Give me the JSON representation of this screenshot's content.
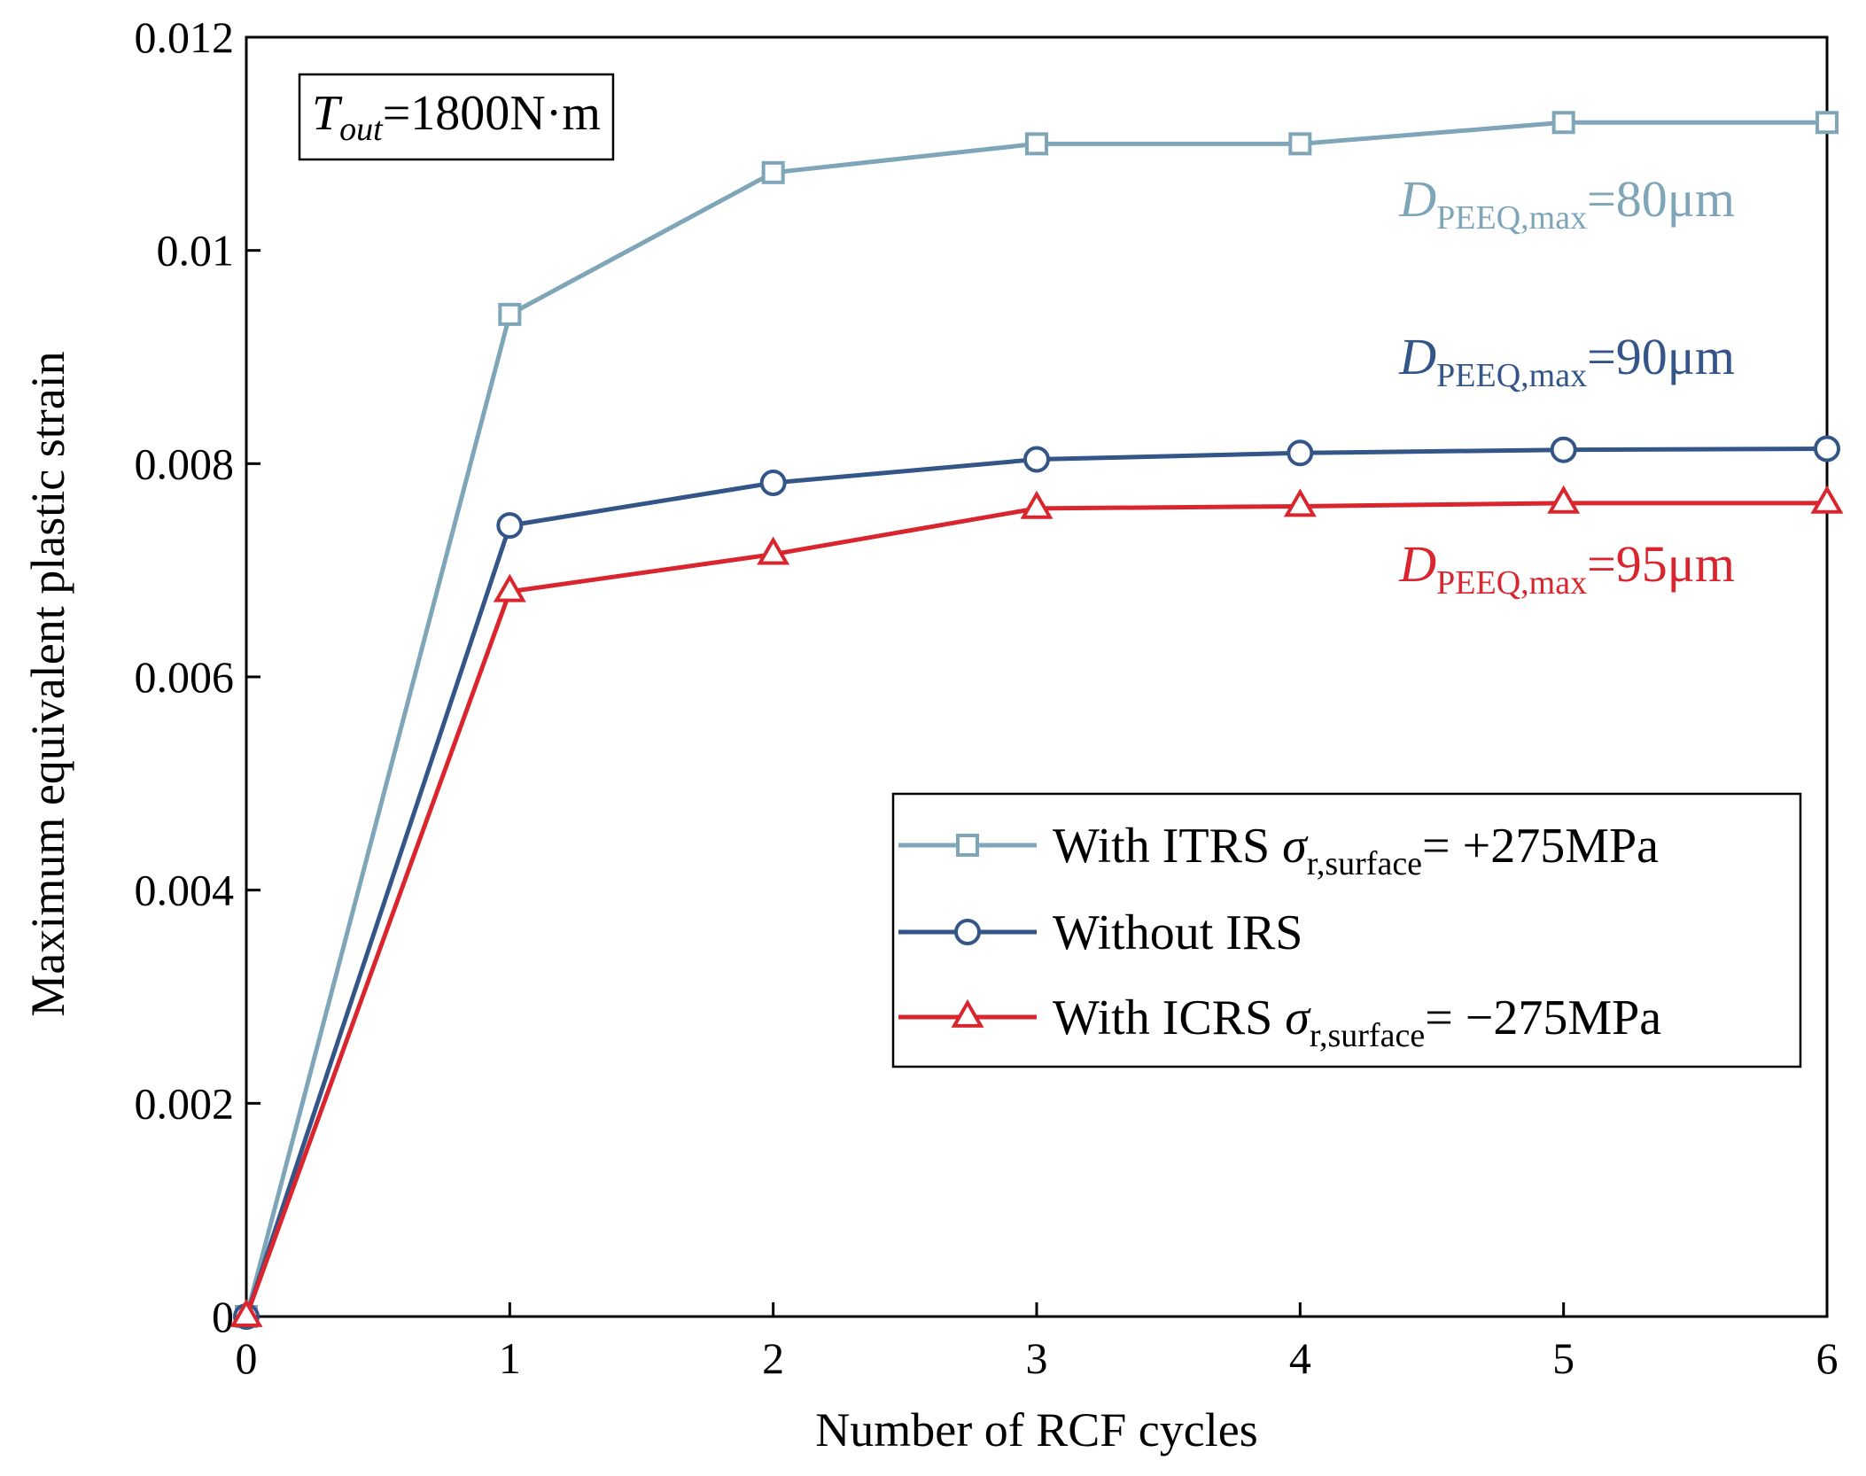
{
  "chart_data": {
    "type": "line",
    "xlabel": "Number of RCF cycles",
    "ylabel": "Maximum equivalent plastic strain",
    "xlim": [
      0,
      6
    ],
    "ylim": [
      0,
      0.012
    ],
    "x_ticks": [
      0,
      1,
      2,
      3,
      4,
      5,
      6
    ],
    "y_ticks": [
      0,
      0.002,
      0.004,
      0.006,
      0.008,
      0.01,
      0.012
    ],
    "x_tick_labels": [
      "0",
      "1",
      "2",
      "3",
      "4",
      "5",
      "6"
    ],
    "y_tick_labels": [
      "0",
      "0.002",
      "0.004",
      "0.006",
      "0.008",
      "0.01",
      "0.012"
    ],
    "x": [
      0,
      1,
      2,
      3,
      4,
      5,
      6
    ],
    "condition": {
      "symbol": "T",
      "subscript": "out",
      "value": "=1800N·m"
    },
    "legend_position": "center-right",
    "series": [
      {
        "id": "itrs",
        "name_prefix": "With ITRS ",
        "name_symbol": "σ",
        "name_sub": "r,surface",
        "name_suffix": "= +275MPa",
        "marker": "square",
        "color": "#7fa5b8",
        "values": [
          0,
          0.0094,
          0.01073,
          0.011,
          0.011,
          0.0112,
          0.0112
        ],
        "annotation": {
          "symbol": "D",
          "sub": "PEEQ,max",
          "value": "=80μm"
        }
      },
      {
        "id": "none",
        "name_prefix": "Without IRS",
        "name_symbol": "",
        "name_sub": "",
        "name_suffix": "",
        "marker": "circle",
        "color": "#335588",
        "values": [
          0,
          0.00742,
          0.00782,
          0.00804,
          0.0081,
          0.00813,
          0.00814
        ],
        "annotation": {
          "symbol": "D",
          "sub": "PEEQ,max",
          "value": "=90μm"
        }
      },
      {
        "id": "icrs",
        "name_prefix": "With ICRS ",
        "name_symbol": "σ",
        "name_sub": "r,surface",
        "name_suffix": "= −275MPa",
        "marker": "triangle",
        "color": "#d9262e",
        "values": [
          0,
          0.0068,
          0.00715,
          0.00758,
          0.0076,
          0.00763,
          0.00763
        ],
        "annotation": {
          "symbol": "D",
          "sub": "PEEQ,max",
          "value": "=95μm"
        }
      }
    ]
  }
}
